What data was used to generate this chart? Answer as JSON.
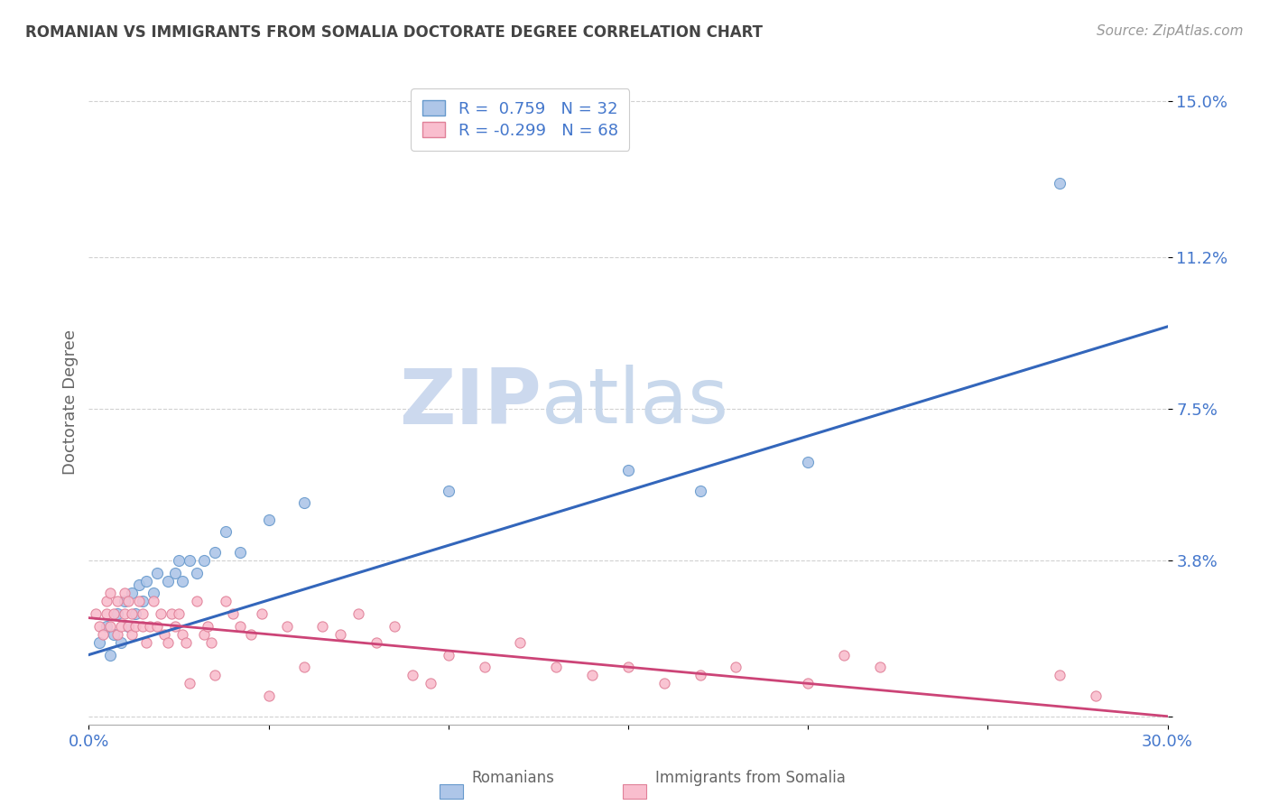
{
  "title": "ROMANIAN VS IMMIGRANTS FROM SOMALIA DOCTORATE DEGREE CORRELATION CHART",
  "source": "Source: ZipAtlas.com",
  "ylabel": "Doctorate Degree",
  "xlim": [
    0.0,
    0.3
  ],
  "ylim": [
    -0.002,
    0.155
  ],
  "yticks": [
    0.0,
    0.038,
    0.075,
    0.112,
    0.15
  ],
  "ytick_labels": [
    "",
    "3.8%",
    "7.5%",
    "11.2%",
    "15.0%"
  ],
  "xticks": [
    0.0,
    0.05,
    0.1,
    0.15,
    0.2,
    0.25,
    0.3
  ],
  "xtick_labels": [
    "0.0%",
    "",
    "",
    "",
    "",
    "",
    "30.0%"
  ],
  "watermark_top": "ZIP",
  "watermark_bot": "atlas",
  "blue_color": "#aec6e8",
  "pink_color": "#f9bece",
  "blue_edge_color": "#6699cc",
  "pink_edge_color": "#e08098",
  "blue_line_color": "#3366bb",
  "pink_line_color": "#cc4477",
  "legend_blue_R": " 0.759",
  "legend_blue_N": "32",
  "legend_pink_R": "-0.299",
  "legend_pink_N": "68",
  "blue_scatter_x": [
    0.003,
    0.005,
    0.006,
    0.007,
    0.008,
    0.009,
    0.01,
    0.011,
    0.012,
    0.013,
    0.014,
    0.015,
    0.016,
    0.018,
    0.019,
    0.022,
    0.024,
    0.025,
    0.026,
    0.028,
    0.03,
    0.032,
    0.035,
    0.038,
    0.042,
    0.05,
    0.06,
    0.1,
    0.15,
    0.17,
    0.2,
    0.27
  ],
  "blue_scatter_y": [
    0.018,
    0.022,
    0.015,
    0.02,
    0.025,
    0.018,
    0.028,
    0.022,
    0.03,
    0.025,
    0.032,
    0.028,
    0.033,
    0.03,
    0.035,
    0.033,
    0.035,
    0.038,
    0.033,
    0.038,
    0.035,
    0.038,
    0.04,
    0.045,
    0.04,
    0.048,
    0.052,
    0.055,
    0.06,
    0.055,
    0.062,
    0.13
  ],
  "pink_scatter_x": [
    0.002,
    0.003,
    0.004,
    0.005,
    0.005,
    0.006,
    0.006,
    0.007,
    0.008,
    0.008,
    0.009,
    0.01,
    0.01,
    0.011,
    0.011,
    0.012,
    0.012,
    0.013,
    0.014,
    0.015,
    0.015,
    0.016,
    0.017,
    0.018,
    0.019,
    0.02,
    0.021,
    0.022,
    0.023,
    0.024,
    0.025,
    0.026,
    0.027,
    0.028,
    0.03,
    0.032,
    0.033,
    0.034,
    0.035,
    0.038,
    0.04,
    0.042,
    0.045,
    0.048,
    0.05,
    0.055,
    0.06,
    0.065,
    0.07,
    0.075,
    0.08,
    0.085,
    0.09,
    0.095,
    0.1,
    0.11,
    0.12,
    0.13,
    0.14,
    0.15,
    0.16,
    0.17,
    0.18,
    0.2,
    0.21,
    0.22,
    0.27,
    0.28
  ],
  "pink_scatter_y": [
    0.025,
    0.022,
    0.02,
    0.028,
    0.025,
    0.022,
    0.03,
    0.025,
    0.028,
    0.02,
    0.022,
    0.025,
    0.03,
    0.022,
    0.028,
    0.025,
    0.02,
    0.022,
    0.028,
    0.025,
    0.022,
    0.018,
    0.022,
    0.028,
    0.022,
    0.025,
    0.02,
    0.018,
    0.025,
    0.022,
    0.025,
    0.02,
    0.018,
    0.008,
    0.028,
    0.02,
    0.022,
    0.018,
    0.01,
    0.028,
    0.025,
    0.022,
    0.02,
    0.025,
    0.005,
    0.022,
    0.012,
    0.022,
    0.02,
    0.025,
    0.018,
    0.022,
    0.01,
    0.008,
    0.015,
    0.012,
    0.018,
    0.012,
    0.01,
    0.012,
    0.008,
    0.01,
    0.012,
    0.008,
    0.015,
    0.012,
    0.01,
    0.005
  ],
  "background_color": "#ffffff",
  "grid_color": "#cccccc",
  "title_color": "#444444",
  "axis_label_color": "#666666",
  "tick_label_color": "#4477cc",
  "watermark_color": "#ccd9ee"
}
